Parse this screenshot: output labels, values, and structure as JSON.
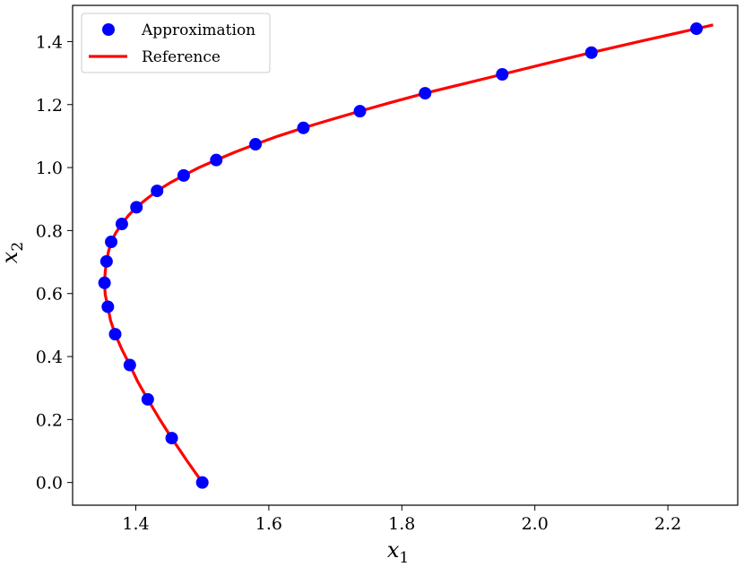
{
  "chart_data": {
    "type": "scatter",
    "title": "",
    "xlabel": "x",
    "xlabel_sub": "1",
    "ylabel": "x",
    "ylabel_sub": "2",
    "xlim": [
      1.305,
      2.305
    ],
    "ylim": [
      -0.072,
      1.515
    ],
    "xticks": [
      1.4,
      1.6,
      1.8,
      2.0,
      2.2
    ],
    "xtick_labels": [
      "1.4",
      "1.6",
      "1.8",
      "2.0",
      "2.2"
    ],
    "yticks": [
      0.0,
      0.2,
      0.4,
      0.6,
      0.8,
      1.0,
      1.2,
      1.4
    ],
    "ytick_labels": [
      "0.0",
      "0.2",
      "0.4",
      "0.6",
      "0.8",
      "1.0",
      "1.2",
      "1.4"
    ],
    "grid": false,
    "legend_position": "top-left",
    "colors": {
      "approximation": "#0000ff",
      "reference": "#ff0000"
    },
    "series": [
      {
        "name": "Approximation",
        "kind": "markers",
        "color": "#0000ff",
        "points": [
          [
            1.5,
            0.0
          ],
          [
            1.454,
            0.141
          ],
          [
            1.418,
            0.264
          ],
          [
            1.391,
            0.373
          ],
          [
            1.369,
            0.471
          ],
          [
            1.358,
            0.558
          ],
          [
            1.353,
            0.634
          ],
          [
            1.356,
            0.702
          ],
          [
            1.363,
            0.764
          ],
          [
            1.379,
            0.821
          ],
          [
            1.401,
            0.874
          ],
          [
            1.432,
            0.926
          ],
          [
            1.472,
            0.975
          ],
          [
            1.521,
            1.024
          ],
          [
            1.58,
            1.074
          ],
          [
            1.652,
            1.126
          ],
          [
            1.737,
            1.179
          ],
          [
            1.835,
            1.236
          ],
          [
            1.951,
            1.296
          ],
          [
            2.085,
            1.365
          ],
          [
            2.243,
            1.441
          ]
        ]
      },
      {
        "name": "Reference",
        "kind": "line",
        "color": "#ff0000",
        "points": [
          [
            1.5,
            0.0
          ],
          [
            1.476,
            0.072
          ],
          [
            1.454,
            0.141
          ],
          [
            1.435,
            0.204
          ],
          [
            1.418,
            0.264
          ],
          [
            1.403,
            0.32
          ],
          [
            1.391,
            0.373
          ],
          [
            1.379,
            0.423
          ],
          [
            1.369,
            0.471
          ],
          [
            1.362,
            0.515
          ],
          [
            1.358,
            0.558
          ],
          [
            1.354,
            0.597
          ],
          [
            1.353,
            0.634
          ],
          [
            1.354,
            0.669
          ],
          [
            1.356,
            0.702
          ],
          [
            1.359,
            0.734
          ],
          [
            1.363,
            0.764
          ],
          [
            1.37,
            0.793
          ],
          [
            1.379,
            0.821
          ],
          [
            1.389,
            0.848
          ],
          [
            1.401,
            0.874
          ],
          [
            1.416,
            0.9
          ],
          [
            1.432,
            0.926
          ],
          [
            1.451,
            0.951
          ],
          [
            1.472,
            0.975
          ],
          [
            1.495,
            1.0
          ],
          [
            1.521,
            1.024
          ],
          [
            1.549,
            1.049
          ],
          [
            1.58,
            1.074
          ],
          [
            1.614,
            1.1
          ],
          [
            1.652,
            1.126
          ],
          [
            1.693,
            1.152
          ],
          [
            1.737,
            1.179
          ],
          [
            1.784,
            1.207
          ],
          [
            1.835,
            1.236
          ],
          [
            1.891,
            1.265
          ],
          [
            1.951,
            1.296
          ],
          [
            2.016,
            1.33
          ],
          [
            2.085,
            1.365
          ],
          [
            2.161,
            1.402
          ],
          [
            2.243,
            1.441
          ],
          [
            2.268,
            1.453
          ]
        ]
      }
    ]
  }
}
